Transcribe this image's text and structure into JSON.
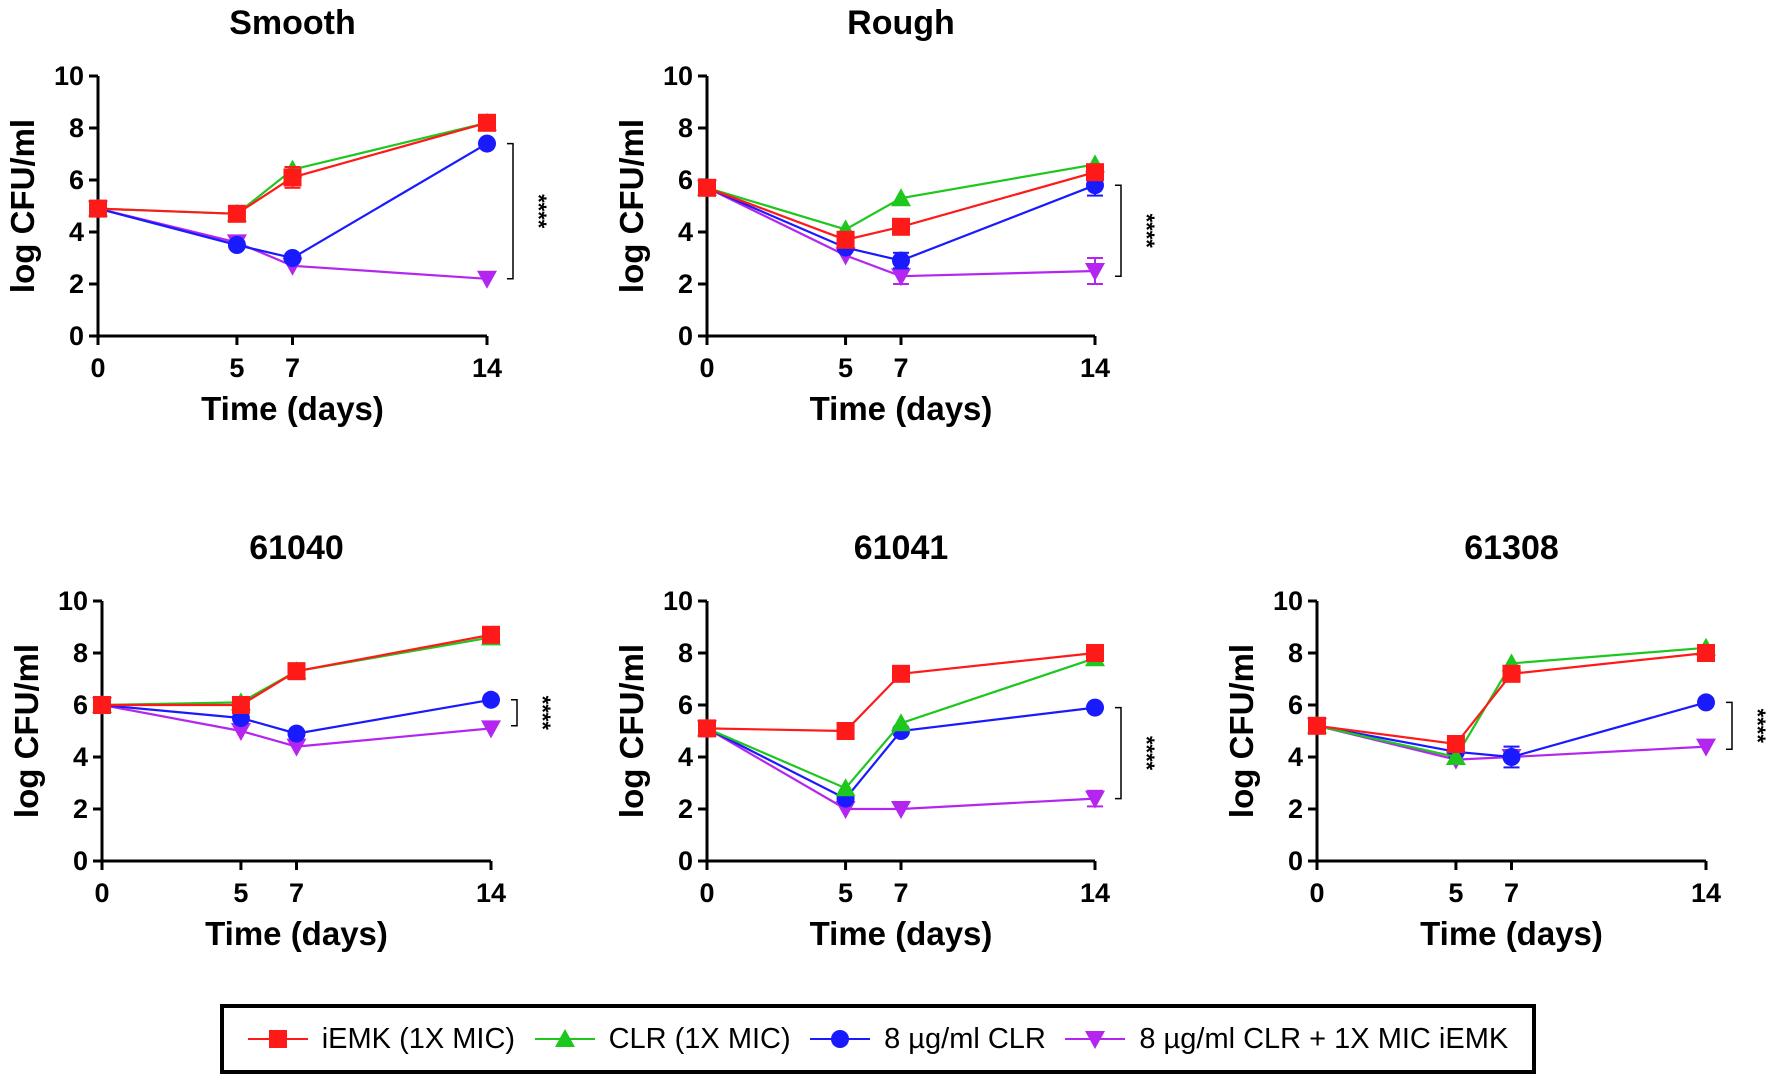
{
  "colors": {
    "iEMK": "#ff1a1a",
    "CLR": "#1ec71e",
    "CLR8": "#1a1aff",
    "combo": "#b426f0"
  },
  "legend": [
    {
      "label": "iEMK (1X MIC)",
      "key": "iEMK",
      "marker": "square"
    },
    {
      "label": "CLR (1X MIC)",
      "key": "CLR",
      "marker": "triangle-up"
    },
    {
      "label": "8 µg/ml CLR",
      "key": "CLR8",
      "marker": "circle"
    },
    {
      "label": "8 µg/ml CLR + 1X MIC iEMK",
      "key": "combo",
      "marker": "triangle-down"
    }
  ],
  "chart_data": [
    {
      "type": "line",
      "title": "Smooth",
      "xlabel": "Time (days)",
      "ylabel": "log CFU/ml",
      "x": [
        0,
        5,
        7,
        14
      ],
      "xticks": [
        "0",
        "5",
        "7",
        "14"
      ],
      "yticks": [
        "0",
        "2",
        "4",
        "6",
        "8",
        "10"
      ],
      "xlim": [
        0,
        14
      ],
      "ylim": [
        0,
        10
      ],
      "significance": "****",
      "sig_range": [
        2.2,
        7.4
      ],
      "series": [
        {
          "name": "iEMK (1X MIC)",
          "key": "iEMK",
          "values": [
            4.9,
            4.7,
            6.1,
            8.2
          ],
          "errors": [
            0,
            0,
            0.4,
            0
          ]
        },
        {
          "name": "CLR (1X MIC)",
          "key": "CLR",
          "values": [
            4.9,
            4.7,
            6.4,
            8.2
          ],
          "errors": [
            0,
            0,
            0,
            0
          ]
        },
        {
          "name": "8 µg/ml CLR",
          "key": "CLR8",
          "values": [
            4.9,
            3.5,
            3.0,
            7.4
          ],
          "errors": [
            0,
            0,
            0,
            0
          ]
        },
        {
          "name": "8 µg/ml CLR + 1X MIC iEMK",
          "key": "combo",
          "values": [
            4.9,
            3.6,
            2.7,
            2.2
          ],
          "errors": [
            0,
            0,
            0,
            0
          ]
        }
      ]
    },
    {
      "type": "line",
      "title": "Rough",
      "xlabel": "Time (days)",
      "ylabel": "log CFU/ml",
      "x": [
        0,
        5,
        7,
        14
      ],
      "xticks": [
        "0",
        "5",
        "7",
        "14"
      ],
      "yticks": [
        "0",
        "2",
        "4",
        "6",
        "8",
        "10"
      ],
      "xlim": [
        0,
        14
      ],
      "ylim": [
        0,
        10
      ],
      "significance": "****",
      "sig_range": [
        2.3,
        5.8
      ],
      "series": [
        {
          "name": "iEMK (1X MIC)",
          "key": "iEMK",
          "values": [
            5.7,
            3.7,
            4.2,
            6.3
          ],
          "errors": [
            0,
            0,
            0,
            0
          ]
        },
        {
          "name": "CLR (1X MIC)",
          "key": "CLR",
          "values": [
            5.7,
            4.1,
            5.3,
            6.6
          ],
          "errors": [
            0,
            0,
            0,
            0
          ]
        },
        {
          "name": "8 µg/ml CLR",
          "key": "CLR8",
          "values": [
            5.7,
            3.4,
            2.9,
            5.8
          ],
          "errors": [
            0,
            0,
            0.3,
            0.4
          ]
        },
        {
          "name": "8 µg/ml CLR + 1X MIC iEMK",
          "key": "combo",
          "values": [
            5.7,
            3.1,
            2.3,
            2.5
          ],
          "errors": [
            0,
            0,
            0.3,
            0.5
          ]
        }
      ]
    },
    {
      "type": "line",
      "title": "61040",
      "xlabel": "Time (days)",
      "ylabel": "log CFU/ml",
      "x": [
        0,
        5,
        7,
        14
      ],
      "xticks": [
        "0",
        "5",
        "7",
        "14"
      ],
      "yticks": [
        "0",
        "2",
        "4",
        "6",
        "8",
        "10"
      ],
      "xlim": [
        0,
        14
      ],
      "ylim": [
        0,
        10
      ],
      "significance": "****",
      "sig_range": [
        5.2,
        6.2
      ],
      "series": [
        {
          "name": "iEMK (1X MIC)",
          "key": "iEMK",
          "values": [
            6.0,
            6.0,
            7.3,
            8.7
          ],
          "errors": [
            0,
            0,
            0.3,
            0
          ]
        },
        {
          "name": "CLR (1X MIC)",
          "key": "CLR",
          "values": [
            6.0,
            6.1,
            7.3,
            8.6
          ],
          "errors": [
            0,
            0,
            0.3,
            0
          ]
        },
        {
          "name": "8 µg/ml CLR",
          "key": "CLR8",
          "values": [
            6.0,
            5.5,
            4.9,
            6.2
          ],
          "errors": [
            0,
            0,
            0,
            0
          ]
        },
        {
          "name": "8 µg/ml CLR + 1X MIC iEMK",
          "key": "combo",
          "values": [
            6.0,
            5.0,
            4.4,
            5.1
          ],
          "errors": [
            0,
            0,
            0,
            0
          ]
        }
      ]
    },
    {
      "type": "line",
      "title": "61041",
      "xlabel": "Time (days)",
      "ylabel": "log CFU/ml",
      "x": [
        0,
        5,
        7,
        14
      ],
      "xticks": [
        "0",
        "5",
        "7",
        "14"
      ],
      "yticks": [
        "0",
        "2",
        "4",
        "6",
        "8",
        "10"
      ],
      "xlim": [
        0,
        14
      ],
      "ylim": [
        0,
        10
      ],
      "significance": "****",
      "sig_range": [
        2.4,
        5.9
      ],
      "series": [
        {
          "name": "iEMK (1X MIC)",
          "key": "iEMK",
          "values": [
            5.1,
            5.0,
            7.2,
            8.0
          ],
          "errors": [
            0,
            0,
            0,
            0
          ]
        },
        {
          "name": "CLR (1X MIC)",
          "key": "CLR",
          "values": [
            5.1,
            2.8,
            5.3,
            7.8
          ],
          "errors": [
            0,
            0,
            0,
            0
          ]
        },
        {
          "name": "8 µg/ml CLR",
          "key": "CLR8",
          "values": [
            5.1,
            2.4,
            5.0,
            5.9
          ],
          "errors": [
            0,
            0,
            0,
            0
          ]
        },
        {
          "name": "8 µg/ml CLR + 1X MIC iEMK",
          "key": "combo",
          "values": [
            5.1,
            2.0,
            2.0,
            2.4
          ],
          "errors": [
            0,
            0,
            0,
            0.3
          ]
        }
      ]
    },
    {
      "type": "line",
      "title": "61308",
      "xlabel": "Time (days)",
      "ylabel": "log CFU/ml",
      "x": [
        0,
        5,
        7,
        14
      ],
      "xticks": [
        "0",
        "5",
        "7",
        "14"
      ],
      "yticks": [
        "0",
        "2",
        "4",
        "6",
        "8",
        "10"
      ],
      "xlim": [
        0,
        14
      ],
      "ylim": [
        0,
        10
      ],
      "significance": "****",
      "sig_range": [
        4.3,
        6.1
      ],
      "series": [
        {
          "name": "iEMK (1X MIC)",
          "key": "iEMK",
          "values": [
            5.2,
            4.5,
            7.2,
            8.0
          ],
          "errors": [
            0,
            0,
            0.3,
            0
          ]
        },
        {
          "name": "CLR (1X MIC)",
          "key": "CLR",
          "values": [
            5.2,
            4.0,
            7.6,
            8.2
          ],
          "errors": [
            0,
            0,
            0,
            0
          ]
        },
        {
          "name": "8 µg/ml CLR",
          "key": "CLR8",
          "values": [
            5.2,
            4.2,
            4.0,
            6.1
          ],
          "errors": [
            0,
            0,
            0.4,
            0
          ]
        },
        {
          "name": "8 µg/ml CLR + 1X MIC iEMK",
          "key": "combo",
          "values": [
            5.2,
            3.9,
            4.0,
            4.4
          ],
          "errors": [
            0,
            0,
            0,
            0
          ]
        }
      ]
    }
  ]
}
